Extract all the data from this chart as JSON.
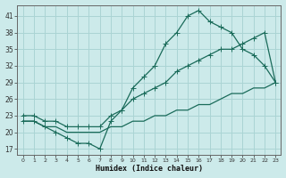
{
  "xlabel": "Humidex (Indice chaleur)",
  "bg_color": "#cceaea",
  "grid_color": "#aad4d4",
  "line_color": "#1a6b5a",
  "xlim": [
    -0.5,
    23.5
  ],
  "ylim": [
    16,
    43
  ],
  "xticks": [
    0,
    1,
    2,
    3,
    4,
    5,
    6,
    7,
    8,
    9,
    10,
    11,
    12,
    13,
    14,
    15,
    16,
    17,
    18,
    19,
    20,
    21,
    22,
    23
  ],
  "yticks": [
    17,
    20,
    23,
    26,
    29,
    32,
    35,
    38,
    41
  ],
  "line1_x": [
    0,
    1,
    2,
    3,
    4,
    5,
    6,
    7,
    8,
    9,
    10,
    11,
    12,
    13,
    14,
    15,
    16,
    17,
    18,
    19,
    20,
    21,
    22,
    23
  ],
  "line1_y": [
    22,
    22,
    21,
    20,
    19,
    18,
    18,
    17,
    22,
    24,
    28,
    30,
    32,
    36,
    38,
    41,
    42,
    40,
    39,
    38,
    35,
    34,
    32,
    29
  ],
  "line2_x": [
    0,
    1,
    2,
    3,
    4,
    5,
    6,
    7,
    8,
    9,
    10,
    11,
    12,
    13,
    14,
    15,
    16,
    17,
    18,
    19,
    20,
    21,
    22,
    23
  ],
  "line2_y": [
    23,
    23,
    22,
    22,
    21,
    21,
    21,
    21,
    23,
    24,
    26,
    27,
    28,
    29,
    31,
    32,
    33,
    34,
    35,
    35,
    36,
    37,
    38,
    29
  ],
  "line3_x": [
    0,
    1,
    2,
    3,
    4,
    5,
    6,
    7,
    8,
    9,
    10,
    11,
    12,
    13,
    14,
    15,
    16,
    17,
    18,
    19,
    20,
    21,
    22,
    23
  ],
  "line3_y": [
    22,
    22,
    21,
    21,
    20,
    20,
    20,
    20,
    21,
    21,
    22,
    22,
    23,
    23,
    24,
    24,
    25,
    25,
    26,
    27,
    27,
    28,
    28,
    29
  ]
}
